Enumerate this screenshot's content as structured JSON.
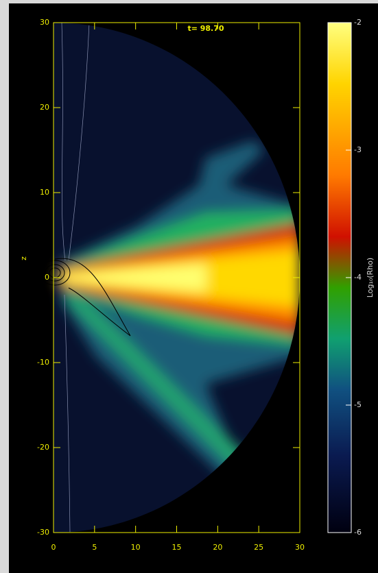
{
  "chart_data": {
    "type": "density-map",
    "title": "t= 98.70",
    "ylabel": "z",
    "xlim": [
      0,
      30
    ],
    "xticks": [
      0,
      5,
      10,
      15,
      20,
      25,
      30
    ],
    "ylim": [
      -30,
      30
    ],
    "yticks": [
      -30,
      -20,
      -10,
      0,
      10,
      20,
      30
    ],
    "axis_color": "#f0f000",
    "colorbar": {
      "label": "Log₁₀(Rho)",
      "lim": [
        -6,
        -2
      ],
      "ticks": [
        -6,
        -5,
        -4,
        -3,
        -2
      ]
    }
  }
}
